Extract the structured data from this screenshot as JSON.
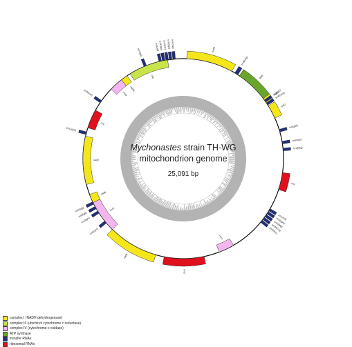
{
  "title": {
    "species_italic": "Mychonastes",
    "rest_line1": " strain TH-WG",
    "line2": "mitochondrion genome",
    "length": "25,091 bp"
  },
  "colors": {
    "complex_I": "#f5e61a",
    "complex_III": "#c7e54a",
    "complex_IV": "#f4b6ee",
    "atp": "#6aa62c",
    "trna": "#1f2f7a",
    "rrna": "#e0101c"
  },
  "legend": [
    {
      "label": "complex I (NADH dehydrogenase)",
      "color": "#f5e61a"
    },
    {
      "label": "complex III (ubichinol cytochrome c reductase)",
      "color": "#c7e54a"
    },
    {
      "label": "complex IV (cytochrome c oxidase)",
      "color": "#f4b6ee"
    },
    {
      "label": "ATP synthase",
      "color": "#6aa62c"
    },
    {
      "label": "transfer RNAs",
      "color": "#1f2f7a"
    },
    {
      "label": "ribosomal RNAs",
      "color": "#e0101c"
    }
  ],
  "genes": [
    {
      "name": "nad5",
      "start": 2,
      "end": 29,
      "type": "complex_I",
      "strand": "outer"
    },
    {
      "name": "atp6",
      "start": 34,
      "end": 53,
      "type": "atp",
      "strand": "outer"
    },
    {
      "name": "nad3",
      "start": 53,
      "end": 57,
      "type": "complex_I",
      "strand": "outer"
    },
    {
      "name": "nad1",
      "start": 58,
      "end": 66,
      "type": "complex_I",
      "strand": "outer"
    },
    {
      "name": "trnM(atg)",
      "start": 31,
      "end": 33,
      "type": "trna",
      "strand": "outer"
    },
    {
      "name": "trnE(ttc)",
      "start": 54,
      "end": 55.5,
      "type": "trna",
      "strand": "outer"
    },
    {
      "name": "trnR(acg)",
      "start": 56,
      "end": 57.5,
      "type": "trna",
      "strand": "outer"
    },
    {
      "name": "trnI(gat)",
      "start": 73,
      "end": 74.5,
      "type": "trna",
      "strand": "outer"
    },
    {
      "name": "trnA(tgc)",
      "start": 80,
      "end": 81.5,
      "type": "trna",
      "strand": "outer"
    },
    {
      "name": "trnQ(ttg)",
      "start": 84,
      "end": 85.5,
      "type": "trna",
      "strand": "outer"
    },
    {
      "name": "rrnL",
      "start": 98,
      "end": 108,
      "type": "rrna",
      "strand": "outer"
    },
    {
      "name": "trnL(taa)",
      "start": 120,
      "end": 121.5,
      "type": "trna",
      "strand": "outer"
    },
    {
      "name": "trnF(gaa)",
      "start": 122,
      "end": 123.5,
      "type": "trna",
      "strand": "outer"
    },
    {
      "name": "trnH(gtg)",
      "start": 124,
      "end": 125.5,
      "type": "trna",
      "strand": "outer"
    },
    {
      "name": "trnW(cca)",
      "start": 126,
      "end": 127.5,
      "type": "trna",
      "strand": "outer"
    },
    {
      "name": "trnG(tcc)",
      "start": 128,
      "end": 129.5,
      "type": "trna",
      "strand": "outer"
    },
    {
      "name": "cox2",
      "start": 150,
      "end": 159,
      "type": "complex_IV",
      "strand": "inner"
    },
    {
      "name": "rrnS",
      "start": 168,
      "end": 191,
      "type": "rrna",
      "strand": "outer"
    },
    {
      "name": "nad4",
      "start": 196,
      "end": 225,
      "type": "complex_I",
      "strand": "outer"
    },
    {
      "name": "cox1",
      "start": 225,
      "end": 244,
      "type": "complex_IV",
      "strand": "inner"
    },
    {
      "name": "trnS(gct)",
      "start": 230,
      "end": 231.5,
      "type": "trna",
      "strand": "outer"
    },
    {
      "name": "trnD(gtc)",
      "start": 237,
      "end": 238.5,
      "type": "trna",
      "strand": "outer"
    },
    {
      "name": "trnN(gtt)",
      "start": 240,
      "end": 241.5,
      "type": "trna",
      "strand": "outer"
    },
    {
      "name": "trnP(tgg)",
      "start": 243,
      "end": 244.5,
      "type": "trna",
      "strand": "outer"
    },
    {
      "name": "nad6",
      "start": 244,
      "end": 249,
      "type": "complex_I",
      "strand": "inner"
    },
    {
      "name": "nad2",
      "start": 255,
      "end": 283,
      "type": "complex_I",
      "strand": "inner"
    },
    {
      "name": "trnC(gca)",
      "start": 284,
      "end": 285.5,
      "type": "trna",
      "strand": "outer"
    },
    {
      "name": "rrnL",
      "start": 288,
      "end": 299,
      "type": "rrna",
      "strand": "inner"
    },
    {
      "name": "trnM(cat)",
      "start": 304,
      "end": 305.5,
      "type": "trna",
      "strand": "outer"
    },
    {
      "name": "cox3",
      "start": 314,
      "end": 322,
      "type": "complex_IV",
      "strand": "inner"
    },
    {
      "name": "nad4L",
      "start": 322,
      "end": 326,
      "type": "complex_I",
      "strand": "inner"
    },
    {
      "name": "cob",
      "start": 328,
      "end": 351,
      "type": "complex_III",
      "strand": "inner"
    },
    {
      "name": "trnT(tgt)",
      "start": 337,
      "end": 338.5,
      "type": "trna",
      "strand": "outer"
    },
    {
      "name": "trnK(ttt)",
      "start": 346,
      "end": 347.5,
      "type": "trna",
      "strand": "outer"
    },
    {
      "name": "trnY(gta)",
      "start": 348,
      "end": 349.5,
      "type": "trna",
      "strand": "outer"
    },
    {
      "name": "trnV(tac)",
      "start": 350,
      "end": 351.5,
      "type": "trna",
      "strand": "outer"
    },
    {
      "name": "trnS(tga)",
      "start": 352,
      "end": 353.5,
      "type": "trna",
      "strand": "outer"
    },
    {
      "name": "trnL(tag)",
      "start": 354,
      "end": 355.5,
      "type": "trna",
      "strand": "outer"
    }
  ]
}
